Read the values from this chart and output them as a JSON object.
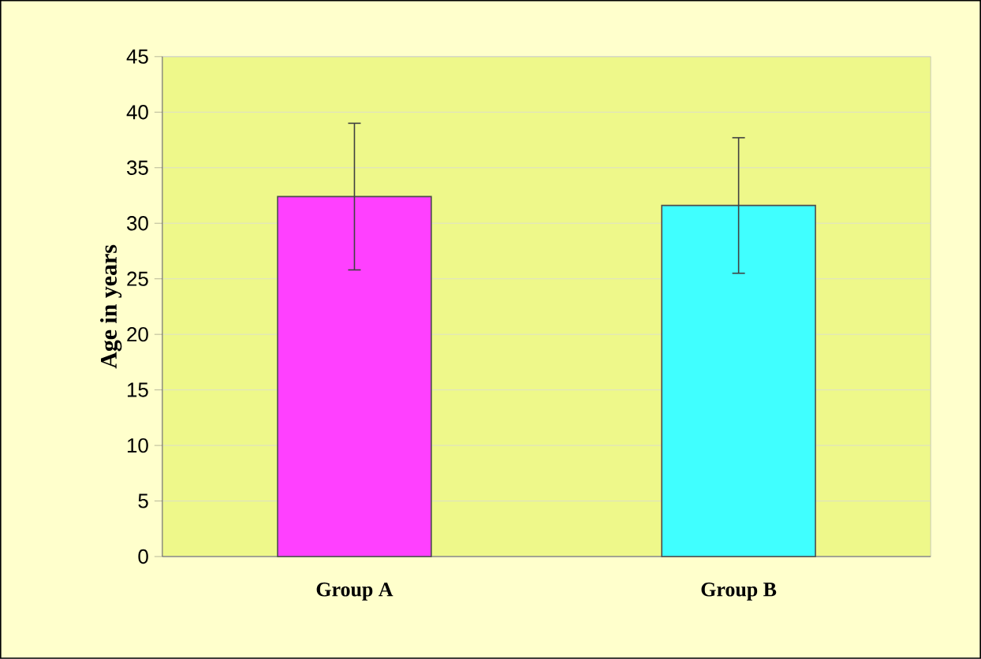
{
  "chart_data": {
    "type": "bar",
    "ylabel": "Age in years",
    "categories": [
      "Group A",
      "Group B"
    ],
    "values": [
      32.4,
      31.6
    ],
    "colors": [
      "#ff40ff",
      "#40ffff"
    ],
    "errors": [
      6.6,
      6.1
    ],
    "ylim": [
      0,
      45
    ],
    "yticks": [
      0,
      5,
      10,
      15,
      20,
      25,
      30,
      35,
      40,
      45
    ],
    "grid": "y"
  }
}
